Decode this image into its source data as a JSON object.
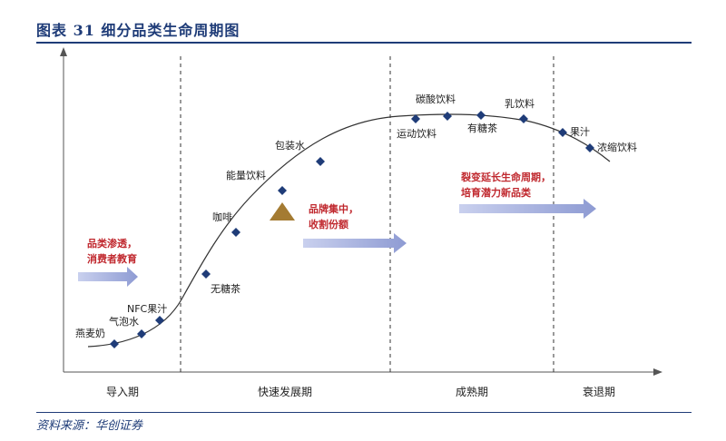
{
  "figure": {
    "title": "图表 31 细分品类生命周期图",
    "source": "资料来源：华创证券"
  },
  "stages": [
    "导入期",
    "快速发展期",
    "成熟期",
    "衰退期"
  ],
  "products": [
    {
      "label": "燕麦奶",
      "stage": "导入期"
    },
    {
      "label": "气泡水",
      "stage": "导入期"
    },
    {
      "label": "NFC果汁",
      "stage": "导入期"
    },
    {
      "label": "无糖茶",
      "stage": "快速发展期"
    },
    {
      "label": "咖啡",
      "stage": "快速发展期"
    },
    {
      "label": "能量饮料",
      "stage": "快速发展期"
    },
    {
      "label": "包装水",
      "stage": "快速发展期"
    },
    {
      "label": "运动饮料",
      "stage": "成熟期"
    },
    {
      "label": "碳酸饮料",
      "stage": "成熟期"
    },
    {
      "label": "有糖茶",
      "stage": "成熟期"
    },
    {
      "label": "乳饮料",
      "stage": "成熟期"
    },
    {
      "label": "果汁",
      "stage": "衰退期"
    },
    {
      "label": "浓缩饮料",
      "stage": "衰退期"
    }
  ],
  "annotations": [
    {
      "lines": [
        "品类渗透，",
        "消费者教育"
      ]
    },
    {
      "lines": [
        "品牌集中，",
        "收割份额"
      ]
    },
    {
      "lines": [
        "裂变延长生命周期，",
        "培育潜力新品类"
      ]
    }
  ],
  "colors": {
    "title": "#1f3c78",
    "marker": "#1f3c78",
    "annotation_text": "#c0282e",
    "arrow": "#9aa6d6",
    "triangle": "#a47b32"
  }
}
